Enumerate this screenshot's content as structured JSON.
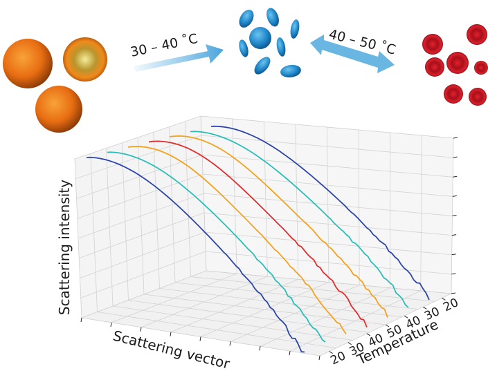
{
  "chart_data": {
    "type": "line",
    "title": "",
    "xlabel": "Scattering vector",
    "ylabel": "Scattering intensity",
    "zlabel": "Temperature",
    "temperature_ticks": [
      "20",
      "30",
      "40",
      "50",
      "40",
      "30",
      "20"
    ],
    "grid": true,
    "series": [
      {
        "temperature": 20,
        "color": "#2c45a8"
      },
      {
        "temperature": 30,
        "color": "#2bbdb8"
      },
      {
        "temperature": 40,
        "color": "#f3a21c"
      },
      {
        "temperature": 50,
        "color": "#e12c2c"
      },
      {
        "temperature": 40,
        "color": "#f3a21c"
      },
      {
        "temperature": 30,
        "color": "#2bbdb8"
      },
      {
        "temperature": 20,
        "color": "#2c45a8"
      }
    ],
    "annotations": {
      "heating_label": "30 – 40 ˚C",
      "cycle_label": "40 – 50 ˚C"
    }
  },
  "colors": {
    "grid": "#d2d2d2",
    "pane_floor": "#f3f3f3",
    "pane_wall": "#f6f6f6",
    "arrow": "#5aaee0",
    "cell_orange": "#ee7a1a",
    "cell_blue": "#2b8fd0",
    "cell_red": "#c81a26"
  }
}
